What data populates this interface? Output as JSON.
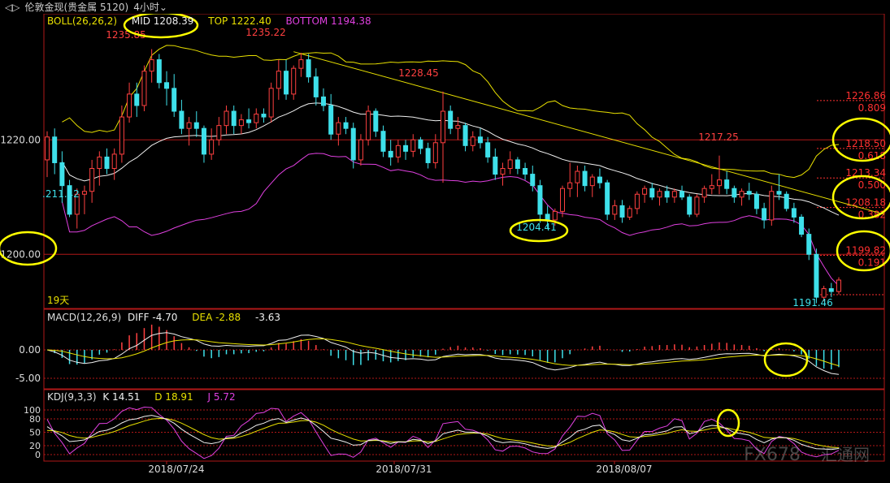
{
  "window": {
    "arrows": "◁▷",
    "title": "伦敦金现(贵金属 5120)",
    "period": "4小时",
    "period_icon": "chevron-down-icon"
  },
  "colors": {
    "up": "#ff4040",
    "down": "#3ee0ea",
    "mid": "#f0f0f0",
    "top": "#e8e000",
    "bottom": "#e040e0",
    "trend": "#e8e000",
    "grid": "#b01818",
    "axis_text": "#dcdcdc",
    "highlight": "#ffff00"
  },
  "boll_header": {
    "name": "BOLL(26,26,2)",
    "mid": "MID 1208.39",
    "top": "TOP 1222.40",
    "bottom": "BOTTOM 1194.38"
  },
  "macd_header": {
    "name": "MACD(12,26,9)",
    "diff": "DIFF -4.70",
    "dea": "DEA -2.88",
    "macd": "-3.63"
  },
  "kdj_header": {
    "name": "KDJ(9,3,3)",
    "k": "K 14.51",
    "d": "D 18.91",
    "j": "J 5.72"
  },
  "price_labels": {
    "left_start": ".211.42",
    "p1235a": "1235.85",
    "p1235b": "1235.22",
    "p1228": "1228.45",
    "p1204": "1204.41",
    "p1217": "1217.25",
    "p1191": "1191.46",
    "days": "19天"
  },
  "fib_levels": [
    {
      "price": "1226.86",
      "ratio": "0.809",
      "value": 1226.86
    },
    {
      "price": "1218.50",
      "ratio": "0.618",
      "value": 1218.5
    },
    {
      "price": "1213.34",
      "ratio": "0.500",
      "value": 1213.34
    },
    {
      "price": "1208.18",
      "ratio": "0.382",
      "value": 1208.18
    },
    {
      "price": "1199.82",
      "ratio": "0.191",
      "value": 1199.82
    }
  ],
  "axis": {
    "main_ticks": [
      "1220.00",
      "1200.00"
    ],
    "macd_ticks": [
      "0.00",
      "-5.00"
    ],
    "kdj_ticks": [
      "100",
      "80",
      "50",
      "20",
      "0"
    ],
    "dates": [
      "2018/07/24",
      "2018/07/31",
      "2018/08/07"
    ]
  },
  "watermark": {
    "left": "FX678",
    "right": "汇通网"
  },
  "chart_data": {
    "type": "candlestick",
    "instrument": "伦敦金现",
    "period": "4小时",
    "ylim": [
      1188,
      1240
    ],
    "bollinger": {
      "mid": 1208.39,
      "top": 1222.4,
      "bottom": 1194.38
    },
    "candles": [
      [
        1216.5,
        1221.5,
        1213.5,
        1220.5
      ],
      [
        1220.5,
        1222.0,
        1214.0,
        1216.0
      ],
      [
        1216.0,
        1218.0,
        1209.0,
        1212.0
      ],
      [
        1212.0,
        1213.0,
        1206.5,
        1207.0
      ],
      [
        1207.0,
        1211.5,
        1204.5,
        1210.5
      ],
      [
        1210.5,
        1212.0,
        1207.0,
        1211.0
      ],
      [
        1211.0,
        1216.5,
        1209.0,
        1215.0
      ],
      [
        1215.0,
        1218.0,
        1212.0,
        1217.0
      ],
      [
        1217.0,
        1218.5,
        1214.0,
        1215.0
      ],
      [
        1215.0,
        1218.5,
        1213.0,
        1217.5
      ],
      [
        1217.5,
        1226.0,
        1216.0,
        1224.0
      ],
      [
        1224.0,
        1230.0,
        1223.0,
        1228.0
      ],
      [
        1228.0,
        1230.0,
        1224.0,
        1226.0
      ],
      [
        1226.0,
        1233.0,
        1225.0,
        1232.0
      ],
      [
        1232.0,
        1235.85,
        1230.0,
        1234.0
      ],
      [
        1234.0,
        1235.0,
        1229.0,
        1230.0
      ],
      [
        1230.0,
        1232.0,
        1226.0,
        1229.0
      ],
      [
        1229.0,
        1231.5,
        1224.0,
        1225.0
      ],
      [
        1225.0,
        1227.0,
        1221.0,
        1222.0
      ],
      [
        1222.0,
        1224.0,
        1219.0,
        1223.0
      ],
      [
        1223.0,
        1225.0,
        1220.5,
        1222.0
      ],
      [
        1222.0,
        1222.5,
        1216.0,
        1217.5
      ],
      [
        1217.5,
        1222.0,
        1216.5,
        1220.0
      ],
      [
        1220.0,
        1224.0,
        1219.0,
        1222.5
      ],
      [
        1222.5,
        1226.0,
        1221.0,
        1225.0
      ],
      [
        1225.0,
        1226.0,
        1221.0,
        1222.5
      ],
      [
        1222.5,
        1224.5,
        1221.0,
        1223.5
      ],
      [
        1223.5,
        1225.5,
        1222.0,
        1223.0
      ],
      [
        1223.0,
        1225.5,
        1222.0,
        1224.5
      ],
      [
        1224.5,
        1225.5,
        1223.0,
        1224.0
      ],
      [
        1224.0,
        1230.0,
        1223.0,
        1229.0
      ],
      [
        1229.0,
        1234.0,
        1227.0,
        1232.0
      ],
      [
        1232.0,
        1234.0,
        1227.0,
        1228.0
      ],
      [
        1228.0,
        1233.0,
        1227.0,
        1232.5
      ],
      [
        1232.5,
        1235.22,
        1231.0,
        1234.0
      ],
      [
        1234.0,
        1235.0,
        1230.0,
        1231.0
      ],
      [
        1231.0,
        1232.5,
        1226.0,
        1227.5
      ],
      [
        1227.5,
        1229.0,
        1225.0,
        1226.0
      ],
      [
        1226.0,
        1228.0,
        1220.0,
        1221.0
      ],
      [
        1221.0,
        1224.0,
        1219.0,
        1223.0
      ],
      [
        1223.0,
        1224.0,
        1221.0,
        1222.0
      ],
      [
        1222.0,
        1223.0,
        1215.0,
        1216.5
      ],
      [
        1216.5,
        1221.0,
        1215.5,
        1220.0
      ],
      [
        1220.0,
        1226.0,
        1219.0,
        1225.0
      ],
      [
        1225.0,
        1225.5,
        1220.5,
        1221.5
      ],
      [
        1221.5,
        1222.5,
        1217.0,
        1218.0
      ],
      [
        1218.0,
        1220.0,
        1215.5,
        1217.0
      ],
      [
        1217.0,
        1220.0,
        1216.0,
        1219.0
      ],
      [
        1219.0,
        1220.0,
        1216.5,
        1218.0
      ],
      [
        1218.0,
        1221.0,
        1217.0,
        1220.0
      ],
      [
        1220.0,
        1220.5,
        1217.5,
        1218.5
      ],
      [
        1218.5,
        1219.5,
        1215.0,
        1216.0
      ],
      [
        1216.0,
        1221.0,
        1215.0,
        1219.5
      ],
      [
        1219.5,
        1228.45,
        1212.5,
        1225.0
      ],
      [
        1225.0,
        1226.0,
        1221.0,
        1222.0
      ],
      [
        1222.0,
        1224.0,
        1220.0,
        1222.5
      ],
      [
        1222.5,
        1223.0,
        1218.0,
        1219.0
      ],
      [
        1219.0,
        1221.5,
        1218.0,
        1220.5
      ],
      [
        1220.5,
        1222.0,
        1218.5,
        1219.5
      ],
      [
        1219.5,
        1220.5,
        1216.0,
        1217.0
      ],
      [
        1217.0,
        1218.5,
        1213.0,
        1214.0
      ],
      [
        1214.0,
        1216.0,
        1212.0,
        1215.0
      ],
      [
        1215.0,
        1218.0,
        1214.0,
        1216.5
      ],
      [
        1216.5,
        1217.0,
        1214.0,
        1215.0
      ],
      [
        1215.0,
        1216.0,
        1213.0,
        1214.0
      ],
      [
        1214.0,
        1215.5,
        1211.0,
        1212.0
      ],
      [
        1212.0,
        1213.0,
        1205.5,
        1207.0
      ],
      [
        1207.0,
        1208.5,
        1204.41,
        1206.0
      ],
      [
        1206.0,
        1208.0,
        1205.0,
        1207.5
      ],
      [
        1207.5,
        1212.0,
        1206.5,
        1211.5
      ],
      [
        1211.5,
        1216.0,
        1210.0,
        1212.5
      ],
      [
        1212.5,
        1215.5,
        1210.0,
        1214.5
      ],
      [
        1214.5,
        1215.5,
        1211.0,
        1212.0
      ],
      [
        1212.0,
        1214.0,
        1210.0,
        1213.5
      ],
      [
        1213.5,
        1215.0,
        1211.5,
        1212.5
      ],
      [
        1212.5,
        1213.0,
        1206.0,
        1207.0
      ],
      [
        1207.0,
        1209.5,
        1206.0,
        1208.5
      ],
      [
        1208.5,
        1209.5,
        1205.5,
        1206.5
      ],
      [
        1206.5,
        1208.5,
        1206.0,
        1208.0
      ],
      [
        1208.0,
        1211.0,
        1207.0,
        1210.5
      ],
      [
        1210.5,
        1212.0,
        1209.0,
        1211.5
      ],
      [
        1211.5,
        1212.5,
        1209.5,
        1210.0
      ],
      [
        1210.0,
        1211.5,
        1208.5,
        1211.0
      ],
      [
        1211.0,
        1212.0,
        1209.0,
        1210.0
      ],
      [
        1210.0,
        1211.5,
        1209.0,
        1211.0
      ],
      [
        1211.0,
        1212.0,
        1209.5,
        1210.0
      ],
      [
        1210.0,
        1210.5,
        1206.5,
        1207.0
      ],
      [
        1207.0,
        1210.5,
        1206.5,
        1210.0
      ],
      [
        1210.0,
        1212.0,
        1209.0,
        1211.5
      ],
      [
        1211.5,
        1214.0,
        1210.5,
        1212.0
      ],
      [
        1212.0,
        1217.25,
        1210.5,
        1213.0
      ],
      [
        1213.0,
        1214.5,
        1210.5,
        1211.5
      ],
      [
        1211.5,
        1212.0,
        1209.0,
        1210.0
      ],
      [
        1210.0,
        1211.5,
        1208.5,
        1211.0
      ],
      [
        1211.0,
        1212.5,
        1209.5,
        1210.5
      ],
      [
        1210.5,
        1211.0,
        1207.0,
        1208.0
      ],
      [
        1208.0,
        1209.0,
        1204.5,
        1206.0
      ],
      [
        1206.0,
        1212.0,
        1205.0,
        1211.0
      ],
      [
        1211.0,
        1214.0,
        1209.5,
        1210.5
      ],
      [
        1210.5,
        1211.0,
        1207.5,
        1208.0
      ],
      [
        1208.0,
        1209.0,
        1205.5,
        1206.5
      ],
      [
        1206.5,
        1207.0,
        1203.0,
        1203.5
      ],
      [
        1203.5,
        1204.5,
        1199.0,
        1200.0
      ],
      [
        1200.0,
        1201.0,
        1191.46,
        1192.5
      ],
      [
        1192.5,
        1194.5,
        1191.8,
        1194.0
      ],
      [
        1194.0,
        1195.0,
        1192.5,
        1193.5
      ],
      [
        1193.5,
        1196.0,
        1193.0,
        1195.5
      ]
    ],
    "macd_ylim": [
      -7,
      9
    ],
    "kdj_ylim": [
      -10,
      115
    ]
  }
}
